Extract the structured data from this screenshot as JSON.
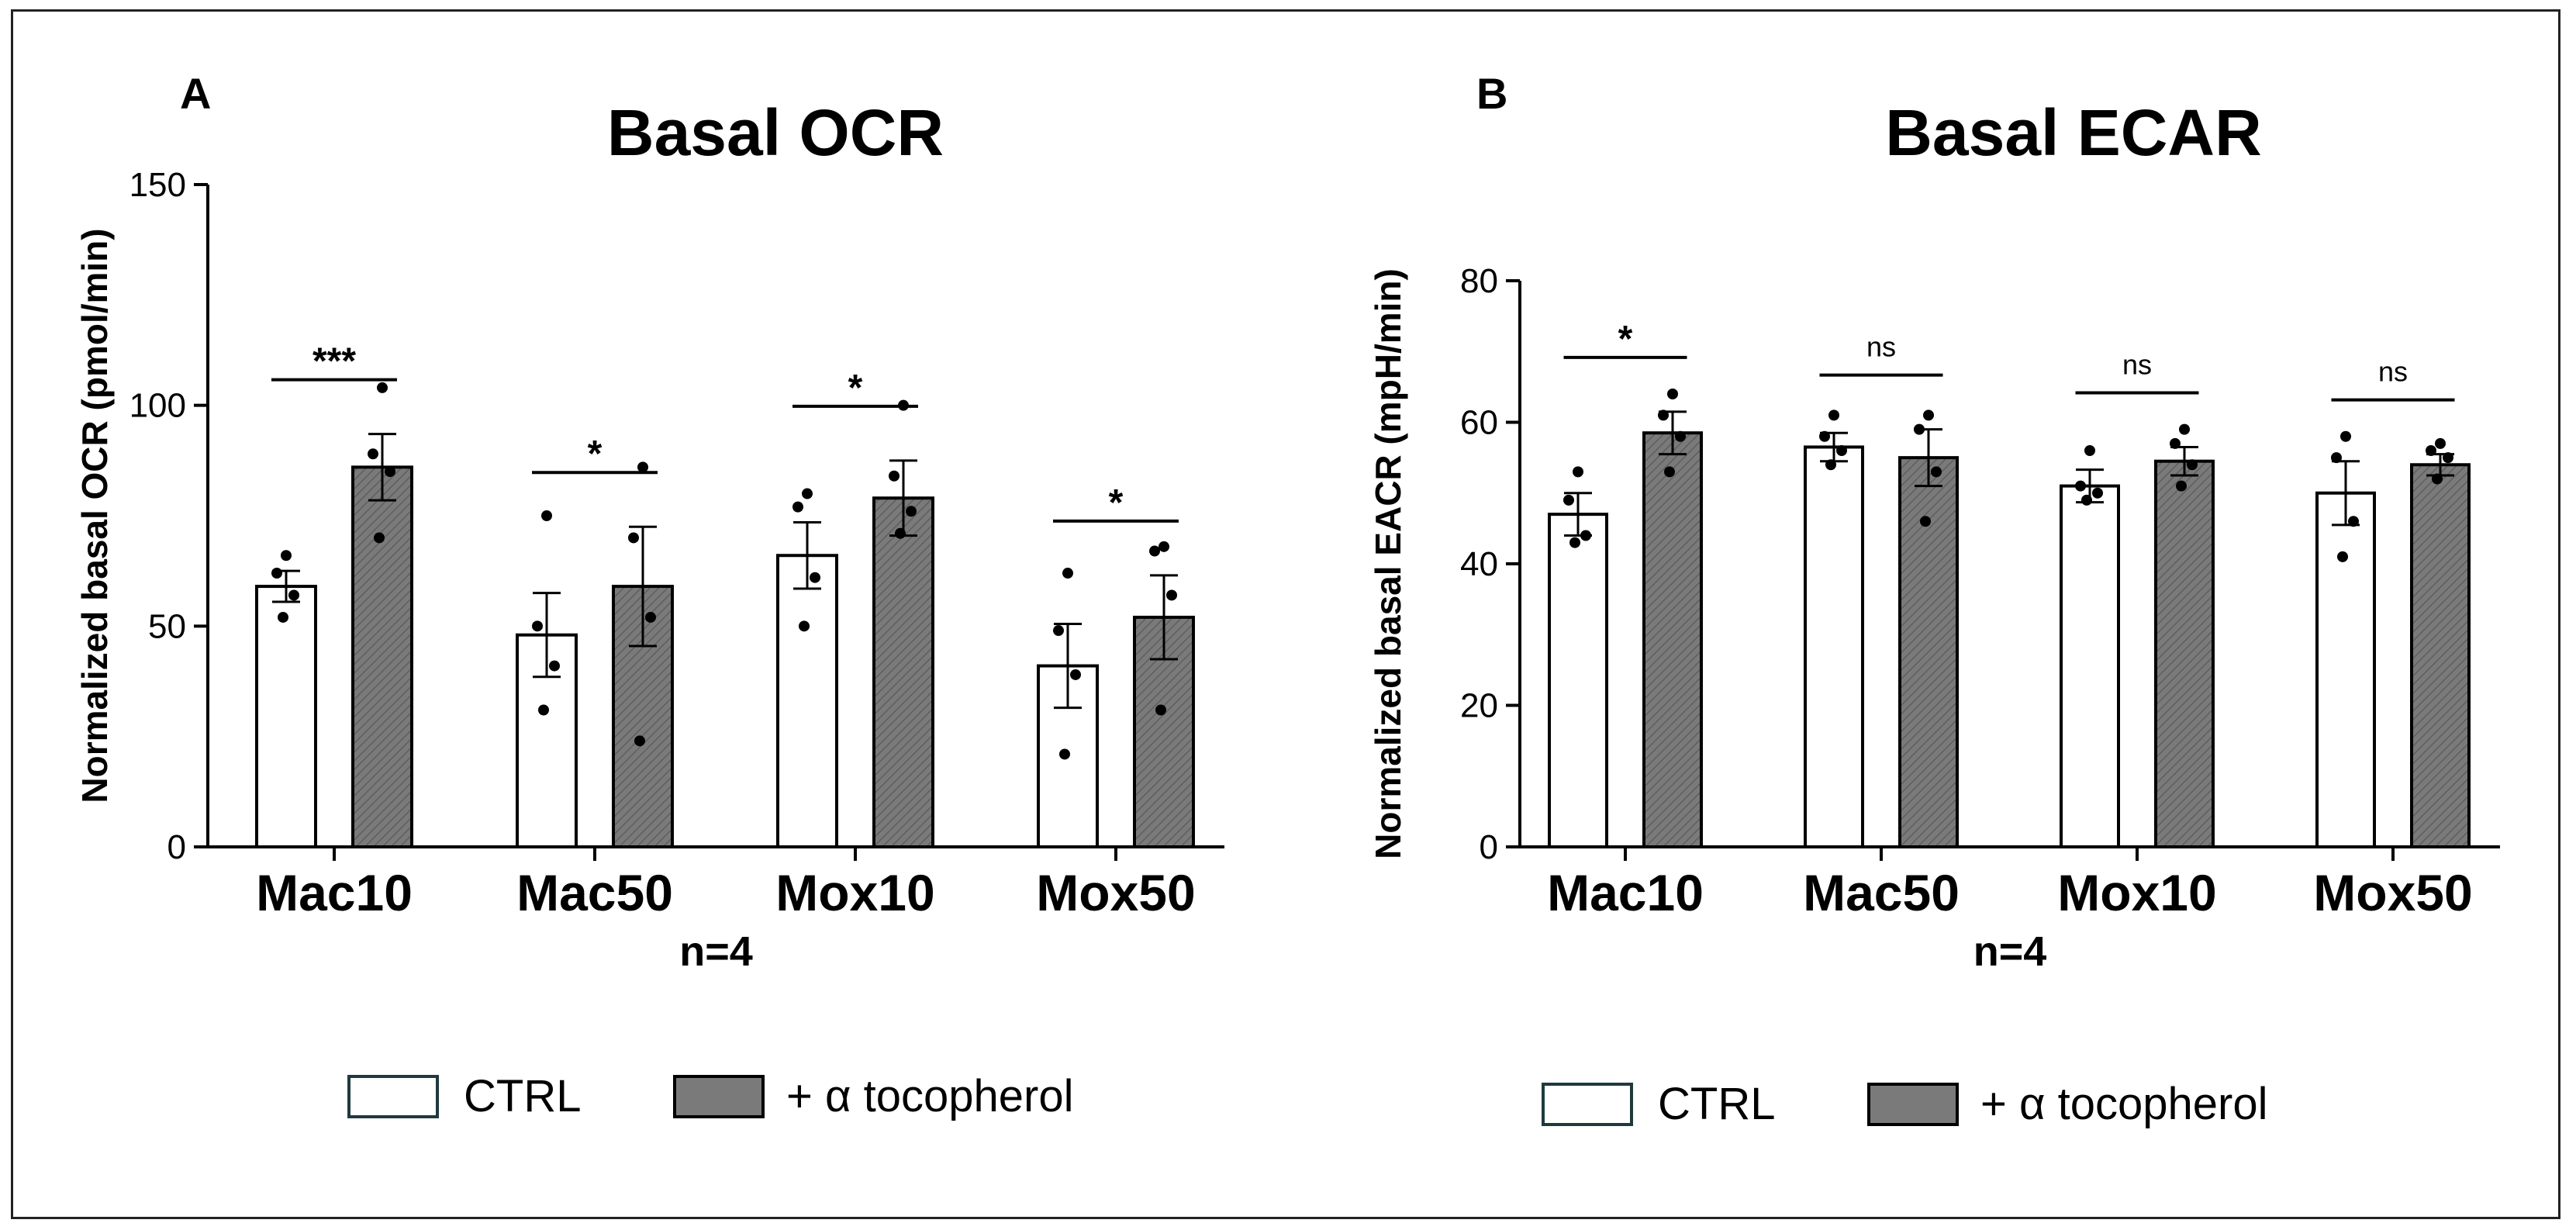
{
  "colors": {
    "ctrl_fill": "#ffffff",
    "treat_fill": "#7a7a7a",
    "ink": "#000000",
    "legend_box_edge": "#1f3a3f"
  },
  "chart_data": [
    {
      "panel": "A",
      "type": "bar",
      "title": "Basal OCR",
      "ylabel": "Normalized basal OCR (pmol/min)",
      "xlabel": "n=4",
      "ylim": [
        0,
        150
      ],
      "yticks": [
        0,
        50,
        100,
        150
      ],
      "categories": [
        "Mac10",
        "Mac50",
        "Mox10",
        "Mox50"
      ],
      "series": [
        {
          "name": "CTRL",
          "values": [
            59,
            48,
            66,
            41
          ],
          "sem": [
            3.5,
            9.5,
            7.5,
            9.5
          ],
          "points": [
            [
              66,
              62,
              57,
              52
            ],
            [
              75,
              50,
              41,
              31
            ],
            [
              80,
              77,
              61,
              50
            ],
            [
              62,
              49,
              39,
              21
            ]
          ]
        },
        {
          "name": "+ α tocopherol",
          "values": [
            86,
            59,
            79,
            52
          ],
          "sem": [
            7.5,
            13.5,
            8.5,
            9.5
          ],
          "points": [
            [
              104,
              89,
              85,
              70
            ],
            [
              86,
              70,
              52,
              24
            ],
            [
              100,
              84,
              76,
              71
            ],
            [
              68,
              67,
              57,
              31
            ]
          ]
        }
      ],
      "significance": [
        "***",
        "*",
        "*",
        "*"
      ],
      "legend": [
        "CTRL",
        "+ α tocopherol"
      ]
    },
    {
      "panel": "B",
      "type": "bar",
      "title": "Basal ECAR",
      "ylabel": "Normalized basal EACR (mpH/min)",
      "xlabel": "n=4",
      "ylim": [
        0,
        80
      ],
      "yticks": [
        0,
        20,
        40,
        60,
        80
      ],
      "categories": [
        "Mac10",
        "Mac50",
        "Mox10",
        "Mox50"
      ],
      "series": [
        {
          "name": "CTRL",
          "values": [
            47,
            56.5,
            51,
            50
          ],
          "sem": [
            3,
            2,
            2.3,
            4.5
          ],
          "points": [
            [
              53,
              49,
              44,
              43
            ],
            [
              61,
              58,
              56,
              54
            ],
            [
              56,
              51,
              50,
              49
            ],
            [
              58,
              55,
              46,
              41
            ]
          ]
        },
        {
          "name": "+ α tocopherol",
          "values": [
            58.5,
            55,
            54.5,
            54
          ],
          "sem": [
            3,
            4,
            2,
            1.5
          ],
          "points": [
            [
              64,
              61,
              58,
              53
            ],
            [
              61,
              59,
              53,
              46
            ],
            [
              59,
              57,
              54,
              51
            ],
            [
              57,
              56,
              55,
              52
            ]
          ]
        }
      ],
      "significance": [
        "*",
        "ns",
        "ns",
        "ns"
      ],
      "legend": [
        "CTRL",
        "+ α tocopherol"
      ]
    }
  ]
}
